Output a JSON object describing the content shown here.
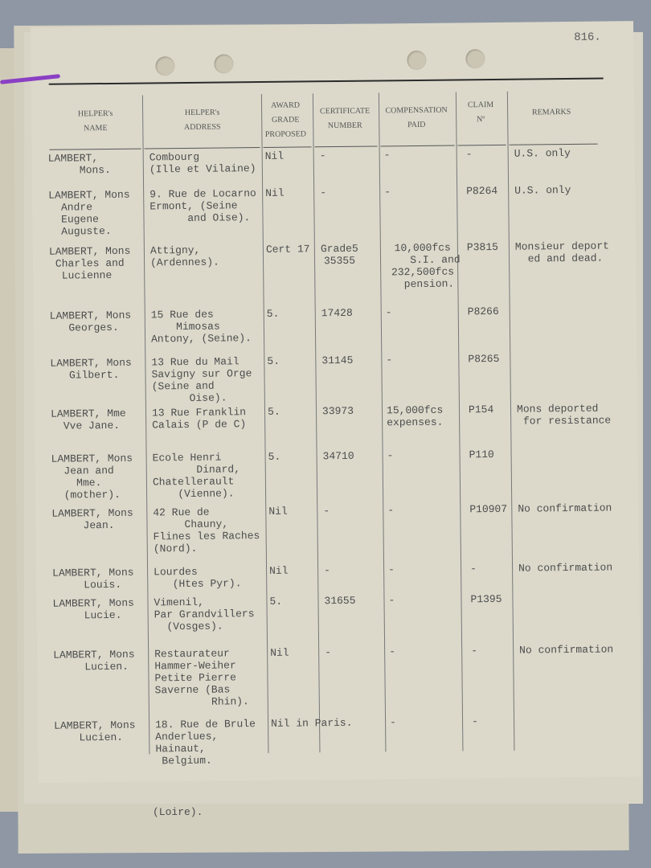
{
  "page_number": "816.",
  "headers": {
    "name": "HELPER's\nNAME",
    "address": "HELPER's\nADDRESS",
    "award": "AWARD\nGRADE\nPROPOSED",
    "certificate": "CERTIFICATE\nNUMBER",
    "compensation": "COMPENSATION\nPAID",
    "claim": "CLAIM\nNº",
    "remarks": "REMARKS"
  },
  "rows": [
    {
      "name": "LAMBERT,\n     Mons.",
      "address": "Combourg\n(Ille et Vilaine)",
      "award": "Nil",
      "certificate": "-",
      "compensation": "-",
      "claim": "-",
      "remarks": "U.S. only"
    },
    {
      "name": "LAMBERT, Mons\n  Andre\n  Eugene\n  Auguste.",
      "address": "9. Rue de Locarno\nErmont, (Seine\n      and Oise).",
      "award": "Nil",
      "certificate": "-",
      "compensation": "-",
      "claim": "P8264",
      "remarks": "U.S. only"
    },
    {
      "name": "LAMBERT, Mons\n Charles and\n  Lucienne",
      "address": "Attigny,\n(Ardennes).",
      "award": "Cert 17",
      "certificate": "Grade5\n35355",
      "compensation": "10,000fcs\n    S.I. and\n232,500fcs\n  pension.",
      "claim": "P3815",
      "remarks": "Monsieur deport\n  ed and dead."
    },
    {
      "name": "LAMBERT, Mons\n   Georges.",
      "address": "15 Rue des\n    Mimosas\nAntony, (Seine).",
      "award": "5.",
      "certificate": "17428",
      "compensation": "-",
      "claim": "P8266",
      "remarks": ""
    },
    {
      "name": "LAMBERT, Mons\n   Gilbert.",
      "address": "13 Rue du Mail\nSavigny sur Orge\n(Seine and\n      Oise).",
      "award": "5.",
      "certificate": "31145",
      "compensation": "-",
      "claim": "P8265",
      "remarks": ""
    },
    {
      "name": "LAMBERT, Mme\n  Vve Jane.",
      "address": "13 Rue Franklin\nCalais (P de C)",
      "award": "5.",
      "certificate": "33973",
      "compensation": "15,000fcs\nexpenses.",
      "claim": "P154",
      "remarks": "Mons deported\n for resistance"
    },
    {
      "name": "LAMBERT, Mons\n  Jean and\n    Mme.\n  (mother).",
      "address": "Ecole Henri\n       Dinard,\nChatellerault\n    (Vienne).",
      "award": "5.",
      "certificate": "34710",
      "compensation": "-",
      "claim": "P110",
      "remarks": ""
    },
    {
      "name": "LAMBERT, Mons\n     Jean.",
      "address": "42 Rue de\n     Chauny,\nFlines les Raches\n(Nord).",
      "award": "Nil",
      "certificate": "-",
      "compensation": "-",
      "claim": "P10907",
      "remarks": "No confirmation"
    },
    {
      "name": "LAMBERT, Mons\n     Louis.",
      "address": "Lourdes\n   (Htes Pyr).",
      "award": "Nil",
      "certificate": "-",
      "compensation": "-",
      "claim": "-",
      "remarks": "No confirmation"
    },
    {
      "name": "LAMBERT, Mons\n     Lucie.",
      "address": "Vimenil,\nPar Grandvillers\n  (Vosges).",
      "award": "5.",
      "certificate": "31655",
      "compensation": "-",
      "claim": "P1395",
      "remarks": ""
    },
    {
      "name": "LAMBERT, Mons\n     Lucien.",
      "address": "Restaurateur\nHammer-Weiher\nPetite Pierre\nSaverne (Bas\n         Rhin).",
      "award": "Nil",
      "certificate": "-",
      "compensation": "-",
      "claim": "-",
      "remarks": "No confirmation"
    },
    {
      "name": "LAMBERT, Mons\n    Lucien.",
      "address": "18. Rue de Brule\nAnderlues,\nHainaut,\n Belgium.",
      "award": "Nil in Paris.",
      "certificate": "",
      "compensation": "-",
      "claim": "-",
      "remarks": ""
    }
  ],
  "underlying_sheet_text": "(Loire).",
  "colors": {
    "paper": "#dcd9cb",
    "background": "#8e97a3",
    "string": "#8a3fc4",
    "ink": "#4c4c4c"
  }
}
